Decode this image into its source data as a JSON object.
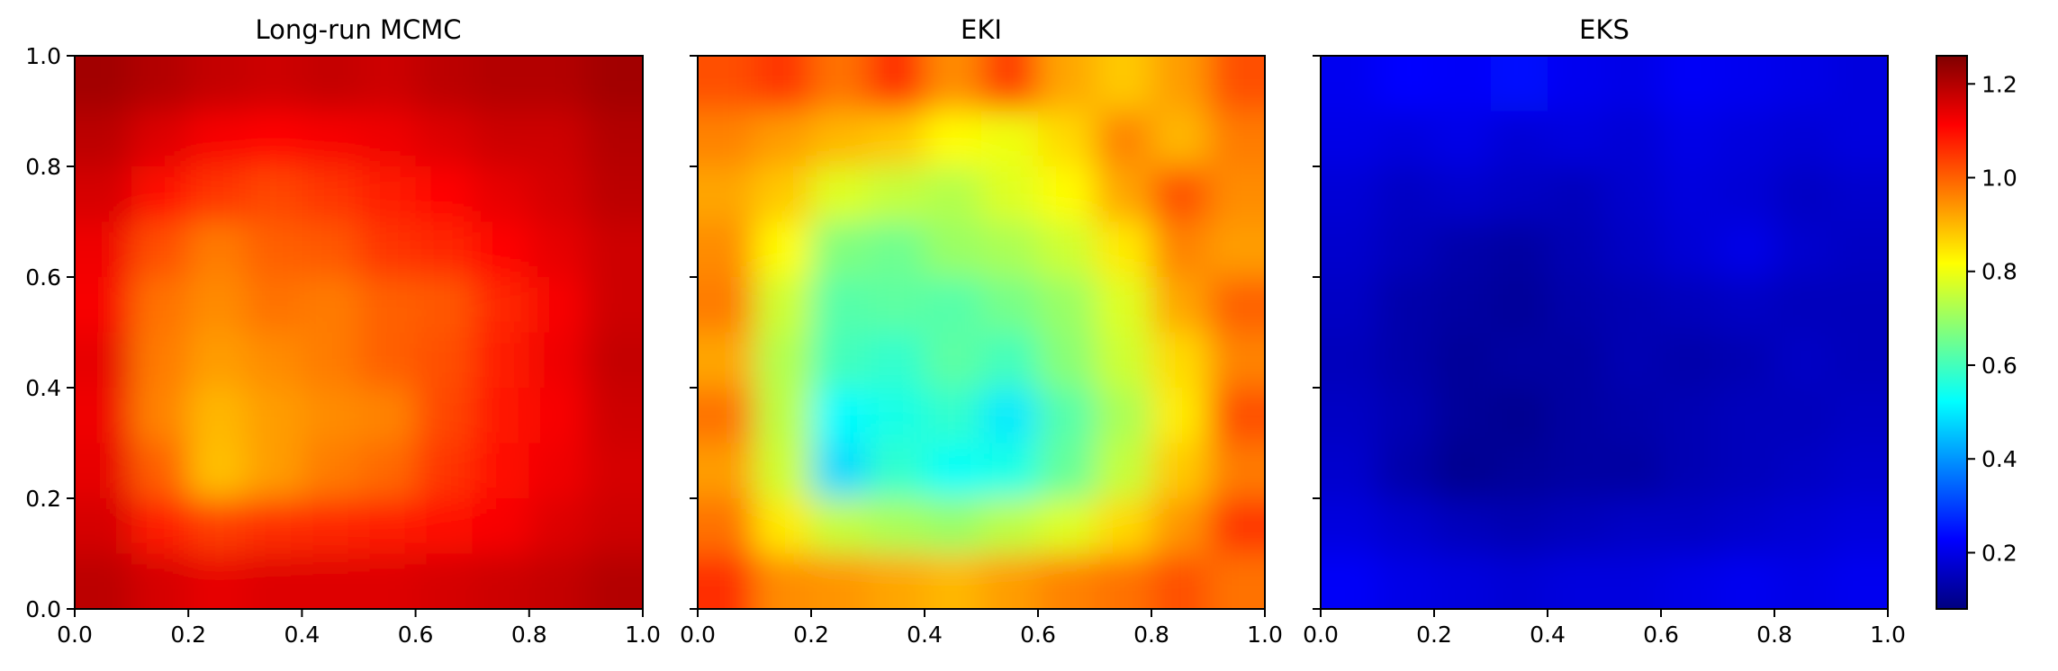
{
  "colors": {
    "background": "#ffffff",
    "axis": "#000000",
    "jet_stops": [
      "#00007f",
      "#0000ff",
      "#007fff",
      "#00ffff",
      "#7fff7f",
      "#ffff00",
      "#ff7f00",
      "#ff0000",
      "#7f0000"
    ]
  },
  "chart_data": [
    {
      "type": "heatmap",
      "title": "Long-run MCMC",
      "xlabel": "",
      "ylabel": "",
      "xlim": [
        0.0,
        1.0
      ],
      "ylim": [
        0.0,
        1.0
      ],
      "xticks": [
        "0.0",
        "0.2",
        "0.4",
        "0.6",
        "0.8",
        "1.0"
      ],
      "yticks": [
        "0.0",
        "0.2",
        "0.4",
        "0.6",
        "0.8",
        "1.0"
      ],
      "show_ytick_labels": true,
      "grid": false,
      "colormap": "jet",
      "clim": [
        0.08,
        1.26
      ],
      "x": [
        0.05,
        0.15,
        0.25,
        0.35,
        0.45,
        0.55,
        0.65,
        0.75,
        0.85,
        0.95
      ],
      "y": [
        0.95,
        0.85,
        0.75,
        0.65,
        0.55,
        0.45,
        0.35,
        0.25,
        0.15,
        0.05
      ],
      "z": [
        [
          1.22,
          1.2,
          1.18,
          1.17,
          1.18,
          1.17,
          1.19,
          1.2,
          1.2,
          1.22
        ],
        [
          1.19,
          1.15,
          1.12,
          1.11,
          1.12,
          1.13,
          1.15,
          1.17,
          1.17,
          1.2
        ],
        [
          1.16,
          1.1,
          1.05,
          1.03,
          1.05,
          1.08,
          1.11,
          1.14,
          1.16,
          1.19
        ],
        [
          1.13,
          1.02,
          0.97,
          1.0,
          1.01,
          1.05,
          1.07,
          1.11,
          1.14,
          1.17
        ],
        [
          1.12,
          0.98,
          0.95,
          0.98,
          0.97,
          1.0,
          1.01,
          1.07,
          1.12,
          1.17
        ],
        [
          1.14,
          0.97,
          0.93,
          0.95,
          0.97,
          1.0,
          1.02,
          1.08,
          1.13,
          1.18
        ],
        [
          1.13,
          0.96,
          0.9,
          0.93,
          0.95,
          0.96,
          1.03,
          1.09,
          1.12,
          1.17
        ],
        [
          1.14,
          1.0,
          0.89,
          0.93,
          0.97,
          0.99,
          1.05,
          1.1,
          1.13,
          1.16
        ],
        [
          1.16,
          1.08,
          1.04,
          1.06,
          1.07,
          1.08,
          1.1,
          1.12,
          1.15,
          1.17
        ],
        [
          1.19,
          1.16,
          1.14,
          1.15,
          1.15,
          1.15,
          1.16,
          1.17,
          1.18,
          1.2
        ]
      ]
    },
    {
      "type": "heatmap",
      "title": "EKI",
      "xlabel": "",
      "ylabel": "",
      "xlim": [
        0.0,
        1.0
      ],
      "ylim": [
        0.0,
        1.0
      ],
      "xticks": [
        "0.0",
        "0.2",
        "0.4",
        "0.6",
        "0.8",
        "1.0"
      ],
      "yticks": [
        "0.0",
        "0.2",
        "0.4",
        "0.6",
        "0.8",
        "1.0"
      ],
      "show_ytick_labels": false,
      "grid": false,
      "colormap": "jet",
      "clim": [
        0.08,
        1.26
      ],
      "x": [
        0.05,
        0.15,
        0.25,
        0.35,
        0.45,
        0.55,
        0.65,
        0.75,
        0.85,
        0.95
      ],
      "y": [
        0.95,
        0.85,
        0.75,
        0.65,
        0.55,
        0.45,
        0.35,
        0.25,
        0.15,
        0.05
      ],
      "z": [
        [
          1.02,
          1.05,
          0.98,
          1.06,
          0.95,
          1.04,
          0.92,
          0.88,
          0.93,
          1.02
        ],
        [
          0.96,
          0.93,
          0.9,
          0.88,
          0.82,
          0.8,
          0.86,
          0.96,
          0.9,
          0.97
        ],
        [
          0.92,
          0.88,
          0.78,
          0.75,
          0.73,
          0.78,
          0.82,
          0.92,
          1.02,
          0.95
        ],
        [
          0.95,
          0.82,
          0.67,
          0.65,
          0.7,
          0.72,
          0.76,
          0.84,
          0.96,
          0.93
        ],
        [
          0.97,
          0.76,
          0.62,
          0.63,
          0.62,
          0.66,
          0.7,
          0.78,
          0.92,
          1.0
        ],
        [
          0.92,
          0.73,
          0.6,
          0.58,
          0.63,
          0.6,
          0.68,
          0.76,
          0.86,
          0.96
        ],
        [
          0.98,
          0.74,
          0.52,
          0.55,
          0.58,
          0.5,
          0.62,
          0.72,
          0.84,
          1.02
        ],
        [
          0.93,
          0.76,
          0.48,
          0.58,
          0.53,
          0.55,
          0.64,
          0.75,
          0.88,
          0.97
        ],
        [
          0.98,
          0.84,
          0.75,
          0.72,
          0.7,
          0.74,
          0.78,
          0.86,
          0.94,
          1.05
        ],
        [
          1.06,
          0.95,
          0.94,
          0.92,
          0.9,
          0.93,
          0.96,
          0.98,
          1.02,
          0.98
        ]
      ]
    },
    {
      "type": "heatmap",
      "title": "EKS",
      "xlabel": "",
      "ylabel": "",
      "xlim": [
        0.0,
        1.0
      ],
      "ylim": [
        0.0,
        1.0
      ],
      "xticks": [
        "0.0",
        "0.2",
        "0.4",
        "0.6",
        "0.8",
        "1.0"
      ],
      "yticks": [
        "0.0",
        "0.2",
        "0.4",
        "0.6",
        "0.8",
        "1.0"
      ],
      "show_ytick_labels": false,
      "grid": false,
      "colormap": "jet",
      "clim": [
        0.08,
        1.26
      ],
      "x": [
        0.05,
        0.15,
        0.25,
        0.35,
        0.45,
        0.55,
        0.65,
        0.75,
        0.85,
        0.95
      ],
      "y": [
        0.95,
        0.85,
        0.75,
        0.65,
        0.55,
        0.45,
        0.35,
        0.25,
        0.15,
        0.05
      ],
      "z": [
        [
          0.21,
          0.23,
          0.22,
          0.24,
          0.21,
          0.2,
          0.22,
          0.21,
          0.2,
          0.19
        ],
        [
          0.2,
          0.19,
          0.2,
          0.18,
          0.19,
          0.18,
          0.2,
          0.19,
          0.18,
          0.19
        ],
        [
          0.18,
          0.16,
          0.17,
          0.16,
          0.15,
          0.17,
          0.19,
          0.18,
          0.16,
          0.17
        ],
        [
          0.17,
          0.15,
          0.13,
          0.12,
          0.14,
          0.16,
          0.18,
          0.2,
          0.17,
          0.16
        ],
        [
          0.16,
          0.13,
          0.12,
          0.11,
          0.13,
          0.14,
          0.15,
          0.16,
          0.15,
          0.15
        ],
        [
          0.15,
          0.13,
          0.11,
          0.12,
          0.12,
          0.14,
          0.13,
          0.14,
          0.16,
          0.15
        ],
        [
          0.16,
          0.14,
          0.11,
          0.1,
          0.12,
          0.13,
          0.14,
          0.15,
          0.15,
          0.16
        ],
        [
          0.17,
          0.13,
          0.1,
          0.11,
          0.12,
          0.12,
          0.14,
          0.15,
          0.16,
          0.17
        ],
        [
          0.19,
          0.17,
          0.15,
          0.14,
          0.15,
          0.16,
          0.16,
          0.17,
          0.18,
          0.19
        ],
        [
          0.22,
          0.2,
          0.19,
          0.18,
          0.19,
          0.19,
          0.2,
          0.21,
          0.2,
          0.21
        ]
      ]
    },
    {
      "type": "colorbar",
      "colormap": "jet",
      "clim": [
        0.08,
        1.26
      ],
      "ticks": [
        0.2,
        0.4,
        0.6,
        0.8,
        1.0,
        1.2
      ],
      "tick_labels": [
        "0.2",
        "0.4",
        "0.6",
        "0.8",
        "1.0",
        "1.2"
      ]
    }
  ]
}
